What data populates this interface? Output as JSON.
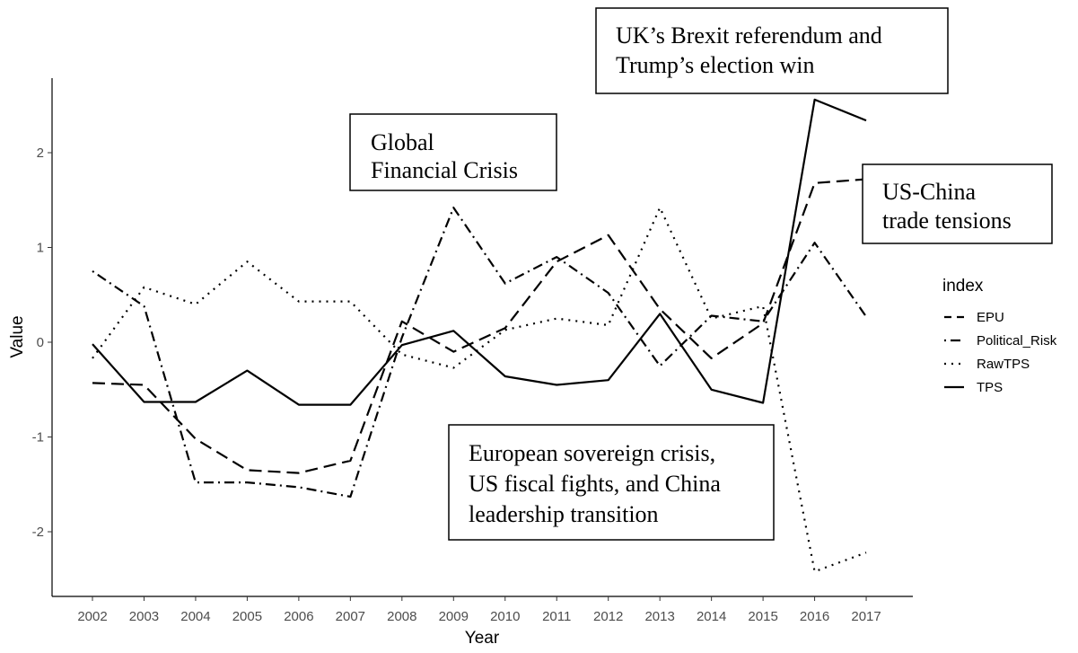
{
  "chart_data": {
    "type": "line",
    "title": "",
    "xlabel": "Year",
    "ylabel": "Value",
    "x": [
      2002,
      2003,
      2004,
      2005,
      2006,
      2007,
      2008,
      2009,
      2010,
      2011,
      2012,
      2013,
      2014,
      2015,
      2016,
      2017
    ],
    "x_ticks": [
      "2002",
      "2003",
      "2004",
      "2005",
      "2006",
      "2007",
      "2008",
      "2009",
      "2010",
      "2011",
      "2012",
      "2013",
      "2014",
      "2015",
      "2016",
      "2017"
    ],
    "y_ticks": [
      "-2",
      "-1",
      "0",
      "1",
      "2"
    ],
    "ylim": [
      -2.7,
      2.7
    ],
    "grid": false,
    "legend": {
      "title": "index",
      "position": "right"
    },
    "series": [
      {
        "name": "EPU",
        "dash": "dashed",
        "values": [
          -0.43,
          -0.45,
          -1.02,
          -1.35,
          -1.38,
          -1.25,
          0.22,
          -0.1,
          0.15,
          0.85,
          1.13,
          0.35,
          -0.17,
          0.2,
          1.68,
          1.72
        ]
      },
      {
        "name": "Political_Risk",
        "dash": "dotdash",
        "values": [
          0.75,
          0.38,
          -1.48,
          -1.48,
          -1.53,
          -1.63,
          0.05,
          1.42,
          0.62,
          0.9,
          0.52,
          -0.25,
          0.28,
          0.22,
          1.05,
          0.27
        ]
      },
      {
        "name": "RawTPS",
        "dash": "dotted",
        "values": [
          -0.17,
          0.58,
          0.4,
          0.85,
          0.43,
          0.43,
          -0.13,
          -0.27,
          0.13,
          0.25,
          0.18,
          1.42,
          0.25,
          0.38,
          -2.42,
          -2.22
        ]
      },
      {
        "name": "TPS",
        "dash": "solid",
        "values": [
          -0.02,
          -0.63,
          -0.63,
          -0.3,
          -0.66,
          -0.66,
          -0.03,
          0.12,
          -0.36,
          -0.45,
          -0.4,
          0.3,
          -0.5,
          -0.64,
          2.56,
          2.34
        ]
      }
    ],
    "annotations": [
      {
        "id": "gfc",
        "lines": [
          "Global",
          "Financial Crisis"
        ]
      },
      {
        "id": "brexit",
        "lines": [
          "UK’s Brexit referendum and",
          "Trump’s election win"
        ]
      },
      {
        "id": "uschina",
        "lines": [
          "US-China",
          "trade tensions"
        ]
      },
      {
        "id": "euro",
        "lines": [
          "European sovereign crisis,",
          "US fiscal fights, and China",
          "leadership transition"
        ]
      }
    ]
  }
}
